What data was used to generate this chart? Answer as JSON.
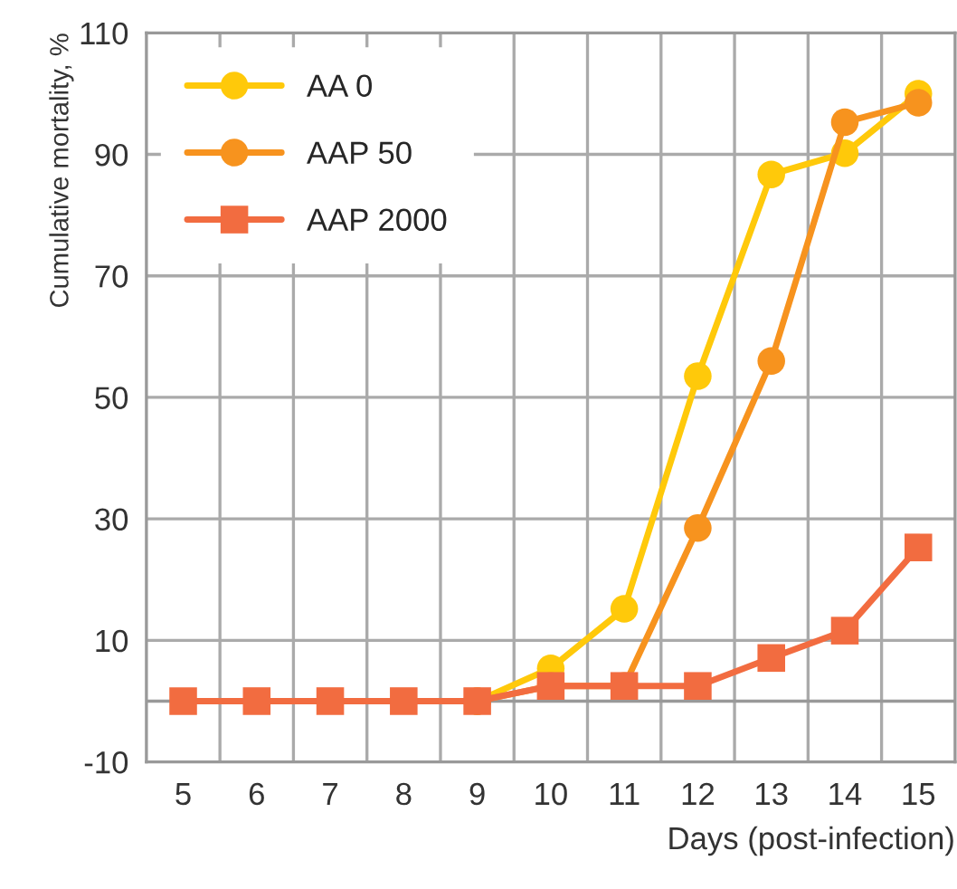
{
  "chart_data": {
    "type": "line",
    "xlabel": "Days (post-infection)",
    "ylabel": "Cumulative mortality, %",
    "categories": [
      "5",
      "6",
      "7",
      "8",
      "9",
      "10",
      "11",
      "12",
      "13",
      "14",
      "15"
    ],
    "series": [
      {
        "name": "AA 0",
        "color": "#ffc90a",
        "marker": "circle",
        "values": [
          null,
          null,
          null,
          null,
          0,
          5.4,
          15.2,
          53.5,
          86.7,
          90.2,
          100
        ]
      },
      {
        "name": "AAP 50",
        "color": "#f7931e",
        "marker": "circle",
        "values": [
          null,
          null,
          null,
          null,
          0,
          2.5,
          2.5,
          28.5,
          56,
          95.3,
          98.5
        ]
      },
      {
        "name": "AAP 2000",
        "color": "#f26c40",
        "marker": "square",
        "values": [
          0,
          0,
          0,
          0,
          0,
          2.5,
          2.5,
          2.5,
          7.1,
          11.6,
          25.3
        ]
      }
    ],
    "ylim": [
      -10,
      110
    ],
    "yticks": [
      -10,
      10,
      30,
      50,
      70,
      90,
      110
    ],
    "ref_lines": [
      {
        "axis": "y",
        "value": 0,
        "color": "#999999"
      }
    ],
    "grid": true,
    "legend": "top left",
    "line_style": "solid"
  }
}
